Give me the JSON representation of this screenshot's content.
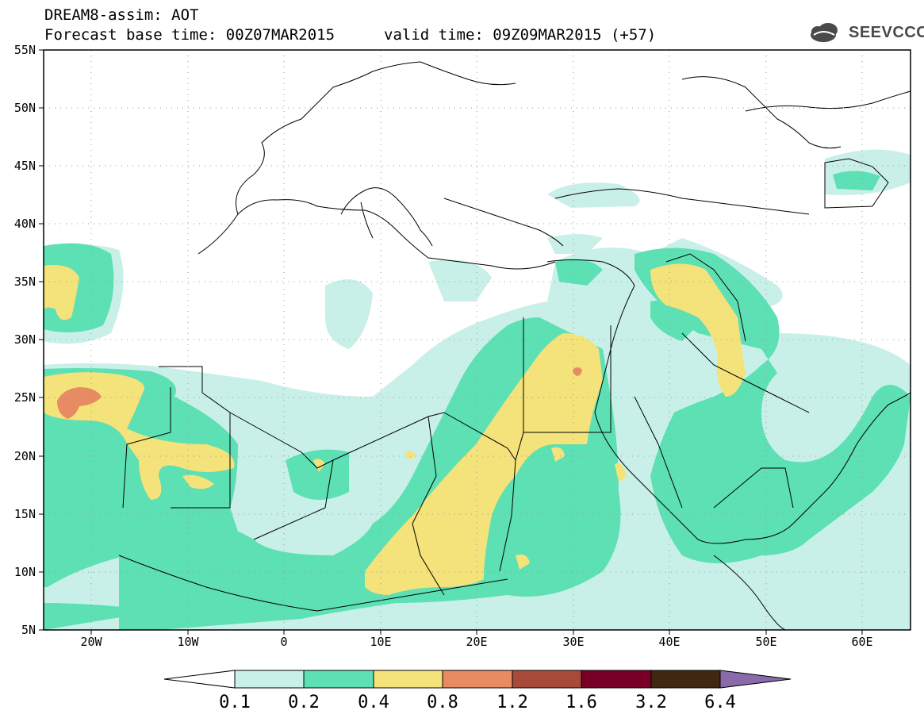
{
  "header": {
    "title_line1": "DREAM8-assim: AOT",
    "title_line2": "Forecast base time: 00Z07MAR2015",
    "valid_time": "valid time: 09Z09MAR2015 (+57)",
    "logo_text": "SEEVCCC"
  },
  "map": {
    "lon_labels": [
      "20W",
      "10W",
      "0",
      "10E",
      "20E",
      "30E",
      "40E",
      "50E",
      "60E"
    ],
    "lat_labels": [
      "55N",
      "50N",
      "45N",
      "40N",
      "35N",
      "30N",
      "25N",
      "20N",
      "15N",
      "10N",
      "5N"
    ],
    "colors": {
      "c01": "#c8f0e8",
      "c02": "#5ce0b4",
      "c04": "#f4e27a",
      "c08": "#e88a62",
      "c12": "#a84a3a",
      "c16": "#780028",
      "c32": "#3e2812",
      "c64": "#8a6aaa"
    }
  },
  "colorbar": {
    "labels": [
      "0.1",
      "0.2",
      "0.4",
      "0.8",
      "1.2",
      "1.6",
      "3.2",
      "6.4"
    ],
    "colors": [
      "#c8f0e8",
      "#5ce0b4",
      "#f4e27a",
      "#e88a62",
      "#a84a3a",
      "#780028",
      "#3e2812"
    ],
    "low_arrow_color": "#ffffff",
    "high_arrow_color": "#8a6aaa"
  }
}
